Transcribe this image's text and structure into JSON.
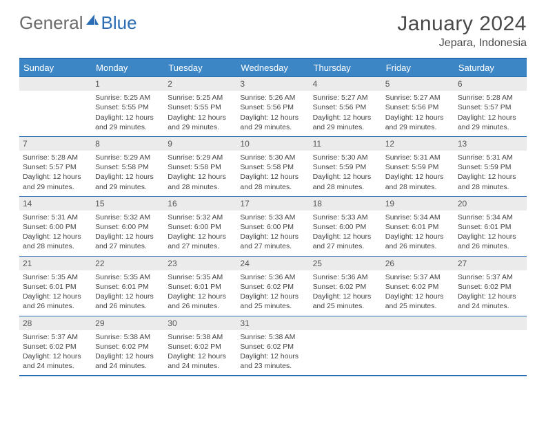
{
  "logo": {
    "part1": "General",
    "part2": "Blue"
  },
  "title": {
    "month": "January 2024",
    "location": "Jepara, Indonesia"
  },
  "colors": {
    "header_bg": "#3d86c6",
    "header_text": "#ffffff",
    "border": "#2a6db5",
    "daynum_bg": "#ebebeb",
    "body_text": "#444444"
  },
  "weekdays": [
    "Sunday",
    "Monday",
    "Tuesday",
    "Wednesday",
    "Thursday",
    "Friday",
    "Saturday"
  ],
  "weeks": [
    [
      {
        "n": "",
        "lines": []
      },
      {
        "n": "1",
        "lines": [
          "Sunrise: 5:25 AM",
          "Sunset: 5:55 PM",
          "Daylight: 12 hours and 29 minutes."
        ]
      },
      {
        "n": "2",
        "lines": [
          "Sunrise: 5:25 AM",
          "Sunset: 5:55 PM",
          "Daylight: 12 hours and 29 minutes."
        ]
      },
      {
        "n": "3",
        "lines": [
          "Sunrise: 5:26 AM",
          "Sunset: 5:56 PM",
          "Daylight: 12 hours and 29 minutes."
        ]
      },
      {
        "n": "4",
        "lines": [
          "Sunrise: 5:27 AM",
          "Sunset: 5:56 PM",
          "Daylight: 12 hours and 29 minutes."
        ]
      },
      {
        "n": "5",
        "lines": [
          "Sunrise: 5:27 AM",
          "Sunset: 5:56 PM",
          "Daylight: 12 hours and 29 minutes."
        ]
      },
      {
        "n": "6",
        "lines": [
          "Sunrise: 5:28 AM",
          "Sunset: 5:57 PM",
          "Daylight: 12 hours and 29 minutes."
        ]
      }
    ],
    [
      {
        "n": "7",
        "lines": [
          "Sunrise: 5:28 AM",
          "Sunset: 5:57 PM",
          "Daylight: 12 hours and 29 minutes."
        ]
      },
      {
        "n": "8",
        "lines": [
          "Sunrise: 5:29 AM",
          "Sunset: 5:58 PM",
          "Daylight: 12 hours and 29 minutes."
        ]
      },
      {
        "n": "9",
        "lines": [
          "Sunrise: 5:29 AM",
          "Sunset: 5:58 PM",
          "Daylight: 12 hours and 28 minutes."
        ]
      },
      {
        "n": "10",
        "lines": [
          "Sunrise: 5:30 AM",
          "Sunset: 5:58 PM",
          "Daylight: 12 hours and 28 minutes."
        ]
      },
      {
        "n": "11",
        "lines": [
          "Sunrise: 5:30 AM",
          "Sunset: 5:59 PM",
          "Daylight: 12 hours and 28 minutes."
        ]
      },
      {
        "n": "12",
        "lines": [
          "Sunrise: 5:31 AM",
          "Sunset: 5:59 PM",
          "Daylight: 12 hours and 28 minutes."
        ]
      },
      {
        "n": "13",
        "lines": [
          "Sunrise: 5:31 AM",
          "Sunset: 5:59 PM",
          "Daylight: 12 hours and 28 minutes."
        ]
      }
    ],
    [
      {
        "n": "14",
        "lines": [
          "Sunrise: 5:31 AM",
          "Sunset: 6:00 PM",
          "Daylight: 12 hours and 28 minutes."
        ]
      },
      {
        "n": "15",
        "lines": [
          "Sunrise: 5:32 AM",
          "Sunset: 6:00 PM",
          "Daylight: 12 hours and 27 minutes."
        ]
      },
      {
        "n": "16",
        "lines": [
          "Sunrise: 5:32 AM",
          "Sunset: 6:00 PM",
          "Daylight: 12 hours and 27 minutes."
        ]
      },
      {
        "n": "17",
        "lines": [
          "Sunrise: 5:33 AM",
          "Sunset: 6:00 PM",
          "Daylight: 12 hours and 27 minutes."
        ]
      },
      {
        "n": "18",
        "lines": [
          "Sunrise: 5:33 AM",
          "Sunset: 6:00 PM",
          "Daylight: 12 hours and 27 minutes."
        ]
      },
      {
        "n": "19",
        "lines": [
          "Sunrise: 5:34 AM",
          "Sunset: 6:01 PM",
          "Daylight: 12 hours and 26 minutes."
        ]
      },
      {
        "n": "20",
        "lines": [
          "Sunrise: 5:34 AM",
          "Sunset: 6:01 PM",
          "Daylight: 12 hours and 26 minutes."
        ]
      }
    ],
    [
      {
        "n": "21",
        "lines": [
          "Sunrise: 5:35 AM",
          "Sunset: 6:01 PM",
          "Daylight: 12 hours and 26 minutes."
        ]
      },
      {
        "n": "22",
        "lines": [
          "Sunrise: 5:35 AM",
          "Sunset: 6:01 PM",
          "Daylight: 12 hours and 26 minutes."
        ]
      },
      {
        "n": "23",
        "lines": [
          "Sunrise: 5:35 AM",
          "Sunset: 6:01 PM",
          "Daylight: 12 hours and 26 minutes."
        ]
      },
      {
        "n": "24",
        "lines": [
          "Sunrise: 5:36 AM",
          "Sunset: 6:02 PM",
          "Daylight: 12 hours and 25 minutes."
        ]
      },
      {
        "n": "25",
        "lines": [
          "Sunrise: 5:36 AM",
          "Sunset: 6:02 PM",
          "Daylight: 12 hours and 25 minutes."
        ]
      },
      {
        "n": "26",
        "lines": [
          "Sunrise: 5:37 AM",
          "Sunset: 6:02 PM",
          "Daylight: 12 hours and 25 minutes."
        ]
      },
      {
        "n": "27",
        "lines": [
          "Sunrise: 5:37 AM",
          "Sunset: 6:02 PM",
          "Daylight: 12 hours and 24 minutes."
        ]
      }
    ],
    [
      {
        "n": "28",
        "lines": [
          "Sunrise: 5:37 AM",
          "Sunset: 6:02 PM",
          "Daylight: 12 hours and 24 minutes."
        ]
      },
      {
        "n": "29",
        "lines": [
          "Sunrise: 5:38 AM",
          "Sunset: 6:02 PM",
          "Daylight: 12 hours and 24 minutes."
        ]
      },
      {
        "n": "30",
        "lines": [
          "Sunrise: 5:38 AM",
          "Sunset: 6:02 PM",
          "Daylight: 12 hours and 24 minutes."
        ]
      },
      {
        "n": "31",
        "lines": [
          "Sunrise: 5:38 AM",
          "Sunset: 6:02 PM",
          "Daylight: 12 hours and 23 minutes."
        ]
      },
      {
        "n": "",
        "lines": []
      },
      {
        "n": "",
        "lines": []
      },
      {
        "n": "",
        "lines": []
      }
    ]
  ]
}
